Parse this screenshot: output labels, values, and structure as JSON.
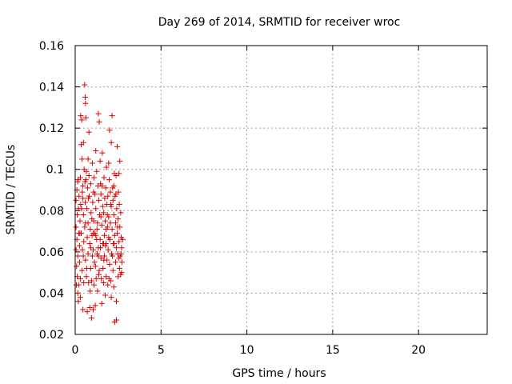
{
  "chart_data": {
    "type": "scatter",
    "title": "Day 269 of 2014, SRMTID for receiver wroc",
    "xlabel": "GPS time / hours",
    "ylabel": "SRMTID / TECUs",
    "xlim": [
      0,
      24
    ],
    "ylim": [
      0.02,
      0.16
    ],
    "xticks": [
      "0",
      "5",
      "10",
      "15",
      "20"
    ],
    "yticks": [
      "0.02",
      "0.04",
      "0.06",
      "0.08",
      "0.1",
      "0.12",
      "0.14",
      "0.16"
    ],
    "grid": true,
    "marker": "+",
    "color": "#dd0000",
    "series": [
      {
        "points": [
          [
            0.05,
            0.072
          ],
          [
            0.05,
            0.061
          ],
          [
            0.05,
            0.085
          ],
          [
            0.08,
            0.053
          ],
          [
            0.1,
            0.09
          ],
          [
            0.1,
            0.066
          ],
          [
            0.12,
            0.078
          ],
          [
            0.12,
            0.048
          ],
          [
            0.15,
            0.094
          ],
          [
            0.15,
            0.058
          ],
          [
            0.18,
            0.081
          ],
          [
            0.18,
            0.036
          ],
          [
            0.2,
            0.069
          ],
          [
            0.2,
            0.044
          ],
          [
            0.22,
            0.087
          ],
          [
            0.25,
            0.063
          ],
          [
            0.25,
            0.055
          ],
          [
            0.28,
            0.075
          ],
          [
            0.3,
            0.096
          ],
          [
            0.3,
            0.038
          ],
          [
            0.32,
            0.083
          ],
          [
            0.32,
            0.126
          ],
          [
            0.35,
            0.069
          ],
          [
            0.35,
            0.112
          ],
          [
            0.38,
            0.124
          ],
          [
            0.4,
            0.051
          ],
          [
            0.4,
            0.105
          ],
          [
            0.42,
            0.089
          ],
          [
            0.42,
            0.061
          ],
          [
            0.45,
            0.092
          ],
          [
            0.45,
            0.032
          ],
          [
            0.48,
            0.078
          ],
          [
            0.48,
            0.113
          ],
          [
            0.5,
            0.065
          ],
          [
            0.5,
            0.045
          ],
          [
            0.52,
            0.1
          ],
          [
            0.55,
            0.141
          ],
          [
            0.55,
            0.072
          ],
          [
            0.58,
            0.135
          ],
          [
            0.58,
            0.084
          ],
          [
            0.6,
            0.132
          ],
          [
            0.6,
            0.056
          ],
          [
            0.62,
            0.125
          ],
          [
            0.62,
            0.095
          ],
          [
            0.65,
            0.099
          ],
          [
            0.65,
            0.048
          ],
          [
            0.68,
            0.081
          ],
          [
            0.7,
            0.031
          ],
          [
            0.7,
            0.067
          ],
          [
            0.72,
            0.091
          ],
          [
            0.75,
            0.059
          ],
          [
            0.75,
            0.074
          ],
          [
            0.78,
            0.045
          ],
          [
            0.8,
            0.097
          ],
          [
            0.8,
            0.118
          ],
          [
            0.82,
            0.087
          ],
          [
            0.85,
            0.064
          ],
          [
            0.85,
            0.033
          ],
          [
            0.88,
            0.071
          ],
          [
            0.9,
            0.052
          ],
          [
            0.9,
            0.093
          ],
          [
            0.92,
            0.079
          ],
          [
            0.95,
            0.028
          ],
          [
            0.95,
            0.046
          ],
          [
            0.98,
            0.068
          ],
          [
            1.0,
            0.058
          ],
          [
            1.0,
            0.103
          ],
          [
            1.02,
            0.084
          ],
          [
            1.05,
            0.032
          ],
          [
            1.05,
            0.061
          ],
          [
            1.08,
            0.075
          ],
          [
            1.1,
            0.096
          ],
          [
            1.1,
            0.044
          ],
          [
            1.12,
            0.055
          ],
          [
            1.15,
            0.088
          ],
          [
            1.15,
            0.069
          ],
          [
            1.18,
            0.053
          ],
          [
            1.2,
            0.109
          ],
          [
            1.2,
            0.081
          ],
          [
            1.22,
            0.047
          ],
          [
            1.25,
            0.066
          ],
          [
            1.25,
            0.099
          ],
          [
            1.28,
            0.059
          ],
          [
            1.3,
            0.074
          ],
          [
            1.3,
            0.041
          ],
          [
            1.32,
            0.092
          ],
          [
            1.35,
            0.062
          ],
          [
            1.35,
            0.127
          ],
          [
            1.38,
            0.085
          ],
          [
            1.4,
            0.123
          ],
          [
            1.4,
            0.051
          ],
          [
            1.42,
            0.078
          ],
          [
            1.45,
            0.104
          ],
          [
            1.45,
            0.066
          ],
          [
            1.48,
            0.093
          ],
          [
            1.5,
            0.057
          ],
          [
            1.5,
            0.088
          ],
          [
            1.52,
            0.047
          ],
          [
            1.55,
            0.073
          ],
          [
            1.55,
            0.035
          ],
          [
            1.58,
            0.108
          ],
          [
            1.6,
            0.064
          ],
          [
            1.6,
            0.082
          ],
          [
            1.62,
            0.052
          ],
          [
            1.65,
            0.079
          ],
          [
            1.65,
            0.045
          ],
          [
            1.68,
            0.096
          ],
          [
            1.7,
            0.068
          ],
          [
            1.7,
            0.058
          ],
          [
            1.72,
            0.086
          ],
          [
            1.75,
            0.039
          ],
          [
            1.75,
            0.075
          ],
          [
            1.78,
            0.091
          ],
          [
            1.8,
            0.064
          ],
          [
            1.8,
            0.048
          ],
          [
            1.82,
            0.101
          ],
          [
            1.85,
            0.083
          ],
          [
            1.85,
            0.056
          ],
          [
            1.88,
            0.072
          ],
          [
            1.9,
            0.044
          ],
          [
            1.9,
            0.087
          ],
          [
            1.92,
            0.061
          ],
          [
            1.95,
            0.067
          ],
          [
            1.95,
            0.077
          ],
          [
            1.98,
            0.095
          ],
          [
            2.0,
            0.054
          ],
          [
            2.0,
            0.119
          ],
          [
            2.02,
            0.066
          ],
          [
            2.05,
            0.089
          ],
          [
            2.05,
            0.074
          ],
          [
            2.08,
            0.046
          ],
          [
            2.1,
            0.113
          ],
          [
            2.1,
            0.082
          ],
          [
            2.12,
            0.059
          ],
          [
            2.15,
            0.071
          ],
          [
            2.15,
            0.126
          ],
          [
            2.18,
            0.091
          ],
          [
            2.2,
            0.051
          ],
          [
            2.2,
            0.085
          ],
          [
            2.22,
            0.064
          ],
          [
            2.25,
            0.078
          ],
          [
            2.25,
            0.043
          ],
          [
            2.28,
            0.098
          ],
          [
            2.3,
            0.068
          ],
          [
            2.3,
            0.026
          ],
          [
            2.32,
            0.087
          ],
          [
            2.35,
            0.055
          ],
          [
            2.35,
            0.074
          ],
          [
            2.38,
            0.097
          ],
          [
            2.4,
            0.062
          ],
          [
            2.4,
            0.036
          ],
          [
            2.42,
            0.081
          ],
          [
            2.45,
            0.111
          ],
          [
            2.45,
            0.069
          ],
          [
            2.48,
            0.059
          ],
          [
            2.5,
            0.076
          ],
          [
            2.5,
            0.048
          ],
          [
            2.52,
            0.089
          ],
          [
            2.55,
            0.065
          ],
          [
            2.55,
            0.098
          ],
          [
            2.58,
            0.052
          ],
          [
            2.6,
            0.072
          ],
          [
            2.6,
            0.104
          ],
          [
            2.62,
            0.058
          ],
          [
            2.65,
            0.079
          ],
          [
            2.65,
            0.049
          ],
          [
            2.68,
            0.067
          ],
          [
            2.7,
            0.062
          ],
          [
            2.7,
            0.05
          ],
          [
            2.72,
            0.055
          ],
          [
            0.07,
            0.044
          ],
          [
            0.17,
            0.095
          ],
          [
            0.27,
            0.069
          ],
          [
            0.37,
            0.081
          ],
          [
            0.47,
            0.058
          ],
          [
            0.57,
            0.094
          ],
          [
            0.67,
            0.052
          ],
          [
            0.77,
            0.086
          ],
          [
            0.87,
            0.041
          ],
          [
            0.97,
            0.076
          ],
          [
            1.07,
            0.089
          ],
          [
            1.17,
            0.034
          ],
          [
            1.27,
            0.071
          ],
          [
            1.37,
            0.049
          ],
          [
            1.47,
            0.062
          ],
          [
            1.57,
            0.092
          ],
          [
            1.67,
            0.056
          ],
          [
            1.77,
            0.063
          ],
          [
            1.87,
            0.078
          ],
          [
            1.97,
            0.047
          ],
          [
            2.07,
            0.083
          ],
          [
            2.17,
            0.058
          ],
          [
            2.27,
            0.064
          ],
          [
            2.37,
            0.088
          ],
          [
            2.47,
            0.072
          ],
          [
            2.57,
            0.083
          ],
          [
            2.67,
            0.059
          ],
          [
            2.77,
            0.066
          ],
          [
            0.3,
            0.047
          ],
          [
            0.6,
            0.074
          ],
          [
            0.9,
            0.062
          ],
          [
            1.2,
            0.068
          ],
          [
            1.5,
            0.077
          ],
          [
            1.8,
            0.071
          ],
          [
            2.1,
            0.038
          ],
          [
            2.4,
            0.027
          ],
          [
            0.15,
            0.04
          ],
          [
            0.45,
            0.086
          ],
          [
            0.75,
            0.105
          ],
          [
            1.05,
            0.069
          ],
          [
            1.35,
            0.058
          ],
          [
            1.65,
            0.064
          ],
          [
            1.95,
            0.103
          ],
          [
            2.25,
            0.092
          ],
          [
            2.55,
            0.057
          ]
        ]
      }
    ]
  }
}
